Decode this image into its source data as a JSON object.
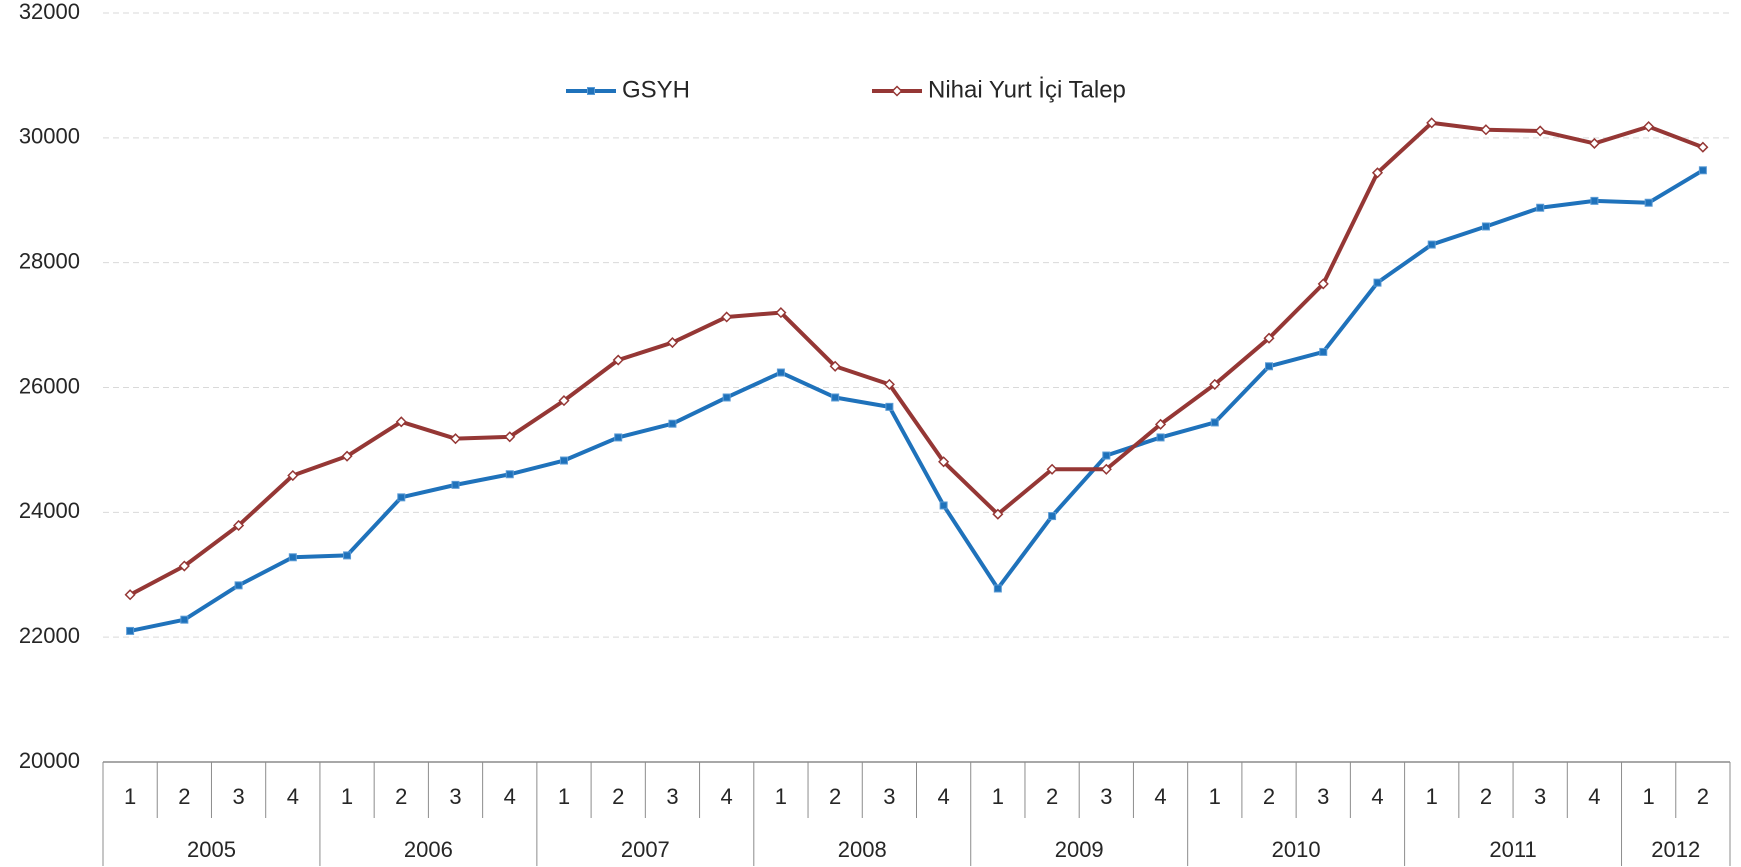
{
  "chart_data": {
    "type": "line",
    "groups": [
      {
        "label": "2005",
        "quarters": [
          "1",
          "2",
          "3",
          "4"
        ]
      },
      {
        "label": "2006",
        "quarters": [
          "1",
          "2",
          "3",
          "4"
        ]
      },
      {
        "label": "2007",
        "quarters": [
          "1",
          "2",
          "3",
          "4"
        ]
      },
      {
        "label": "2008",
        "quarters": [
          "1",
          "2",
          "3",
          "4"
        ]
      },
      {
        "label": "2009",
        "quarters": [
          "1",
          "2",
          "3",
          "4"
        ]
      },
      {
        "label": "2010",
        "quarters": [
          "1",
          "2",
          "3",
          "4"
        ]
      },
      {
        "label": "2011",
        "quarters": [
          "1",
          "2",
          "3",
          "4"
        ]
      },
      {
        "label": "2012",
        "quarters": [
          "1",
          "2"
        ]
      }
    ],
    "series": [
      {
        "name": "GSYH",
        "color": "#1f72bb",
        "marker": "square",
        "values": [
          22100,
          22280,
          22830,
          23280,
          23310,
          24240,
          24440,
          24610,
          24830,
          25200,
          25420,
          25840,
          26240,
          25840,
          25690,
          24110,
          22780,
          23940,
          24910,
          25200,
          25440,
          26340,
          26570,
          27680,
          28290,
          28580,
          28880,
          28990,
          28960,
          29480
        ]
      },
      {
        "name": "Nihai Yurt İçi Talep",
        "color": "#953735",
        "marker": "diamond",
        "values": [
          22680,
          23140,
          23790,
          24590,
          24900,
          25450,
          25180,
          25210,
          25790,
          26440,
          26720,
          27130,
          27200,
          26340,
          26050,
          24810,
          23970,
          24690,
          24690,
          25410,
          26050,
          26790,
          27660,
          29440,
          30240,
          30130,
          30110,
          29910,
          30180,
          29850
        ]
      }
    ],
    "ylim": [
      20000,
      32000
    ],
    "yticks": [
      20000,
      22000,
      24000,
      26000,
      28000,
      30000,
      32000
    ],
    "grid": true,
    "legend": "top"
  }
}
